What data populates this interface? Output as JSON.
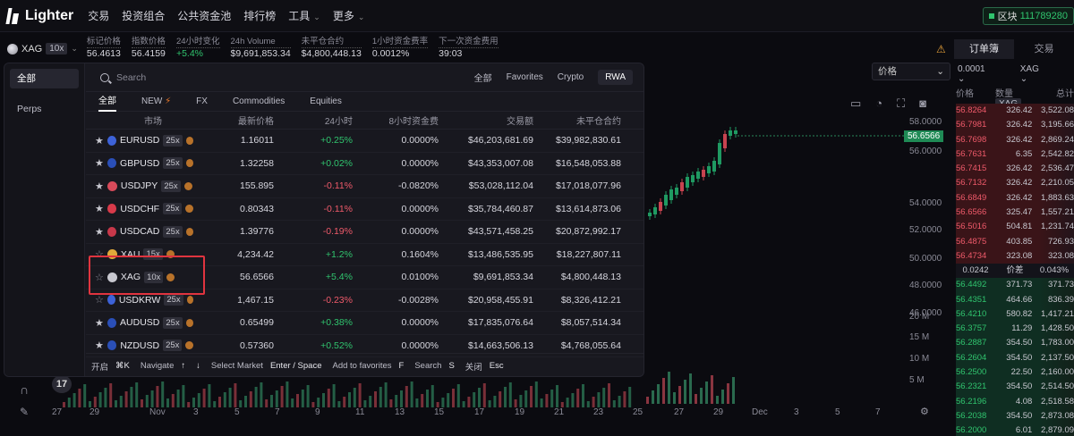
{
  "nav": {
    "logo": "Lighter",
    "items": [
      "交易",
      "投资组合",
      "公共资金池",
      "排行榜",
      "工具",
      "更多"
    ],
    "block_label": "区块",
    "block_value": "111789280"
  },
  "ticker": {
    "symbol": "XAG",
    "leverage": "10x",
    "stats": [
      {
        "label": "标记价格",
        "value": "56.4613",
        "tone": ""
      },
      {
        "label": "指数价格",
        "value": "56.4159",
        "tone": ""
      },
      {
        "label": "24小时变化",
        "value": "+5.4%",
        "tone": "green"
      },
      {
        "label": "24h Volume",
        "value": "$9,691,853.34",
        "tone": ""
      },
      {
        "label": "未平仓合约",
        "value": "$4,800,448.13",
        "tone": ""
      },
      {
        "label": "1小时资金费率",
        "value": "0.0012%",
        "tone": ""
      },
      {
        "label": "下一次资金费用",
        "value": "39:03",
        "tone": ""
      }
    ]
  },
  "orderbook": {
    "tabs": [
      "订单簿",
      "交易"
    ],
    "tick": "0.0001",
    "symbol": "XAG",
    "price_dropdown": "价格",
    "headers": {
      "price": "价格",
      "size": "数量",
      "symbol": "XAG",
      "total": "总计"
    },
    "asks": [
      {
        "p": "56.8264",
        "s": "326.42",
        "t": "3,522.08"
      },
      {
        "p": "56.7981",
        "s": "326.42",
        "t": "3,195.66"
      },
      {
        "p": "56.7698",
        "s": "326.42",
        "t": "2,869.24"
      },
      {
        "p": "56.7631",
        "s": "6.35",
        "t": "2,542.82"
      },
      {
        "p": "56.7415",
        "s": "326.42",
        "t": "2,536.47"
      },
      {
        "p": "56.7132",
        "s": "326.42",
        "t": "2,210.05"
      },
      {
        "p": "56.6849",
        "s": "326.42",
        "t": "1,883.63"
      },
      {
        "p": "56.6566",
        "s": "325.47",
        "t": "1,557.21"
      },
      {
        "p": "56.5016",
        "s": "504.81",
        "t": "1,231.74"
      },
      {
        "p": "56.4875",
        "s": "403.85",
        "t": "726.93"
      },
      {
        "p": "56.4734",
        "s": "323.08",
        "t": "323.08"
      }
    ],
    "spread": {
      "value": "0.0242",
      "label": "价差",
      "pct": "0.043%"
    },
    "bids": [
      {
        "p": "56.4492",
        "s": "371.73",
        "t": "371.73"
      },
      {
        "p": "56.4351",
        "s": "464.66",
        "t": "836.39"
      },
      {
        "p": "56.4210",
        "s": "580.82",
        "t": "1,417.21"
      },
      {
        "p": "56.3757",
        "s": "11.29",
        "t": "1,428.50"
      },
      {
        "p": "56.2887",
        "s": "354.50",
        "t": "1,783.00"
      },
      {
        "p": "56.2604",
        "s": "354.50",
        "t": "2,137.50"
      },
      {
        "p": "56.2500",
        "s": "22.50",
        "t": "2,160.00"
      },
      {
        "p": "56.2321",
        "s": "354.50",
        "t": "2,514.50"
      },
      {
        "p": "56.2196",
        "s": "4.08",
        "t": "2,518.58"
      },
      {
        "p": "56.2038",
        "s": "354.50",
        "t": "2,873.08"
      },
      {
        "p": "56.2000",
        "s": "6.01",
        "t": "2,879.09"
      }
    ]
  },
  "chart": {
    "current_price": "56.6566",
    "price_ticks": [
      "58.0000",
      "56.0000",
      "54.0000",
      "52.0000",
      "50.0000",
      "48.0000",
      "46.0000"
    ],
    "volume_ticks": [
      "20 M",
      "15 M",
      "10 M",
      "5 M"
    ],
    "x_ticks": [
      "27",
      "29",
      "Nov",
      "3",
      "5",
      "7",
      "9",
      "11",
      "13",
      "15",
      "17",
      "19",
      "21",
      "23",
      "25",
      "27",
      "29",
      "Dec",
      "3",
      "5",
      "7"
    ],
    "watermark": "17"
  },
  "picker": {
    "sidebar": [
      "全部",
      "Perps"
    ],
    "search_placeholder": "Search",
    "filters": [
      "全部",
      "Favorites",
      "Crypto",
      "RWA"
    ],
    "categories": [
      "全部",
      "NEW",
      "FX",
      "Commodities",
      "Equities"
    ],
    "headers": [
      "市场",
      "最新价格",
      "24小时",
      "8小时资金费",
      "交易额",
      "未平仓合约"
    ],
    "rows": [
      {
        "star": true,
        "sym": "EURUSD",
        "lev": "25x",
        "price": "1.16011",
        "chg": "+0.25%",
        "dir": "pos",
        "fund": "0.0000%",
        "vol": "$46,203,681.69",
        "oi": "$39,982,830.61",
        "flag": "#3d62d8"
      },
      {
        "star": true,
        "sym": "GBPUSD",
        "lev": "25x",
        "price": "1.32258",
        "chg": "+0.02%",
        "dir": "pos",
        "fund": "0.0000%",
        "vol": "$43,353,007.08",
        "oi": "$16,548,053.88",
        "flag": "#2a4fb8"
      },
      {
        "star": true,
        "sym": "USDJPY",
        "lev": "25x",
        "price": "155.895",
        "chg": "-0.11%",
        "dir": "neg",
        "fund": "-0.0820%",
        "vol": "$53,028,112.04",
        "oi": "$17,018,077.96",
        "flag": "#d84a5a"
      },
      {
        "star": true,
        "sym": "USDCHF",
        "lev": "25x",
        "price": "0.80343",
        "chg": "-0.11%",
        "dir": "neg",
        "fund": "0.0000%",
        "vol": "$35,784,460.87",
        "oi": "$13,614,873.06",
        "flag": "#d83a4a"
      },
      {
        "star": true,
        "sym": "USDCAD",
        "lev": "25x",
        "price": "1.39776",
        "chg": "-0.19%",
        "dir": "neg",
        "fund": "0.0000%",
        "vol": "$43,571,458.25",
        "oi": "$20,872,992.17",
        "flag": "#c8384a"
      },
      {
        "star": false,
        "sym": "XAU",
        "lev": "15x",
        "price": "4,234.42",
        "chg": "+1.2%",
        "dir": "pos",
        "fund": "0.1604%",
        "vol": "$13,486,535.95",
        "oi": "$18,227,807.11",
        "flag": "#e0a83a"
      },
      {
        "star": false,
        "sym": "XAG",
        "lev": "10x",
        "price": "56.6566",
        "chg": "+5.4%",
        "dir": "pos",
        "fund": "0.0100%",
        "vol": "$9,691,853.34",
        "oi": "$4,800,448.13",
        "flag": "#c8c8d0"
      },
      {
        "star": false,
        "sym": "USDKRW",
        "lev": "25x",
        "price": "1,467.15",
        "chg": "-0.23%",
        "dir": "neg",
        "fund": "-0.0028%",
        "vol": "$20,958,455.91",
        "oi": "$8,326,412.21",
        "flag": "#3d62d8"
      },
      {
        "star": true,
        "sym": "AUDUSD",
        "lev": "25x",
        "price": "0.65499",
        "chg": "+0.38%",
        "dir": "pos",
        "fund": "0.0000%",
        "vol": "$17,835,076.64",
        "oi": "$8,057,514.34",
        "flag": "#2a4fb8"
      },
      {
        "star": true,
        "sym": "NZDUSD",
        "lev": "25x",
        "price": "0.57360",
        "chg": "+0.52%",
        "dir": "pos",
        "fund": "0.0000%",
        "vol": "$14,663,506.13",
        "oi": "$4,768,055.64",
        "flag": "#2a4fb8"
      }
    ],
    "footer": [
      {
        "label": "开启",
        "key": "⌘K"
      },
      {
        "label": "Navigate",
        "key": "↑"
      },
      {
        "label": "",
        "key": "↓"
      },
      {
        "label": "Select Market",
        "key": "Enter / Space"
      },
      {
        "label": "Add to favorites",
        "key": "F"
      },
      {
        "label": "Search",
        "key": "S"
      },
      {
        "label": "关闭",
        "key": "Esc"
      }
    ]
  },
  "colors": {
    "accent_green": "#30c46e",
    "accent_red": "#ef5a6a",
    "highlight": "#e0343f"
  }
}
